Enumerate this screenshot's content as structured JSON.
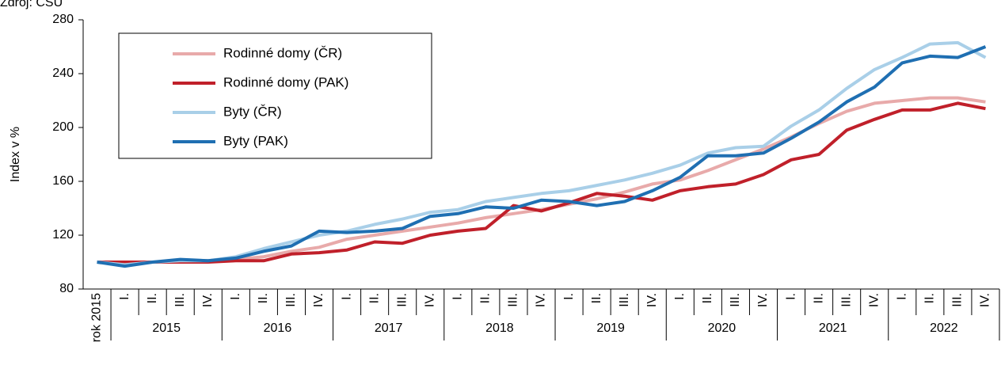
{
  "chart_data": {
    "type": "line",
    "source": "Zdroj: ČSÚ",
    "y_label": "Index v %",
    "categories": [
      "rok 2015",
      "I.",
      "II.",
      "III.",
      "IV.",
      "I.",
      "II.",
      "III.",
      "IV.",
      "I.",
      "II.",
      "III.",
      "IV.",
      "I.",
      "II.",
      "III.",
      "IV.",
      "I.",
      "II.",
      "III.",
      "IV.",
      "I.",
      "II.",
      "III.",
      "IV.",
      "I.",
      "II.",
      "III.",
      "IV.",
      "I.",
      "II.",
      "III.",
      "IV."
    ],
    "year_labels": [
      "2015",
      "2016",
      "2017",
      "2018",
      "2019",
      "2020",
      "2021",
      "2022"
    ],
    "series": [
      {
        "name": "Rodinné domy (ČR)",
        "color": "#e8aaaa",
        "values": [
          100,
          100,
          100,
          100,
          101,
          102,
          104,
          108,
          111,
          117,
          120,
          123,
          126,
          129,
          133,
          136,
          139,
          143,
          147,
          152,
          158,
          161,
          168,
          176,
          184,
          193,
          203,
          212,
          218,
          220,
          222,
          222,
          219
        ]
      },
      {
        "name": "Rodinné domy (PAK)",
        "color": "#c0202a",
        "values": [
          100,
          100,
          100,
          100,
          100,
          101,
          101,
          106,
          107,
          109,
          115,
          114,
          120,
          123,
          125,
          142,
          138,
          144,
          151,
          149,
          146,
          153,
          156,
          158,
          165,
          176,
          180,
          198,
          206,
          213,
          213,
          218,
          214
        ]
      },
      {
        "name": "Byty (ČR)",
        "color": "#a9cfe8",
        "values": [
          100,
          98,
          100,
          101,
          101,
          104,
          110,
          115,
          120,
          123,
          128,
          132,
          137,
          139,
          145,
          148,
          151,
          153,
          157,
          161,
          166,
          172,
          181,
          185,
          186,
          201,
          213,
          229,
          243,
          252,
          262,
          263,
          252
        ]
      },
      {
        "name": "Byty (PAK)",
        "color": "#1f6fb2",
        "values": [
          100,
          97,
          100,
          102,
          101,
          103,
          108,
          112,
          123,
          122,
          123,
          125,
          134,
          136,
          141,
          140,
          146,
          145,
          142,
          145,
          153,
          163,
          179,
          179,
          181,
          192,
          204,
          219,
          230,
          248,
          253,
          252,
          260
        ]
      }
    ],
    "ylim": [
      80,
      280
    ],
    "yticks": [
      80,
      120,
      160,
      200,
      240,
      280
    ],
    "grid": false
  }
}
